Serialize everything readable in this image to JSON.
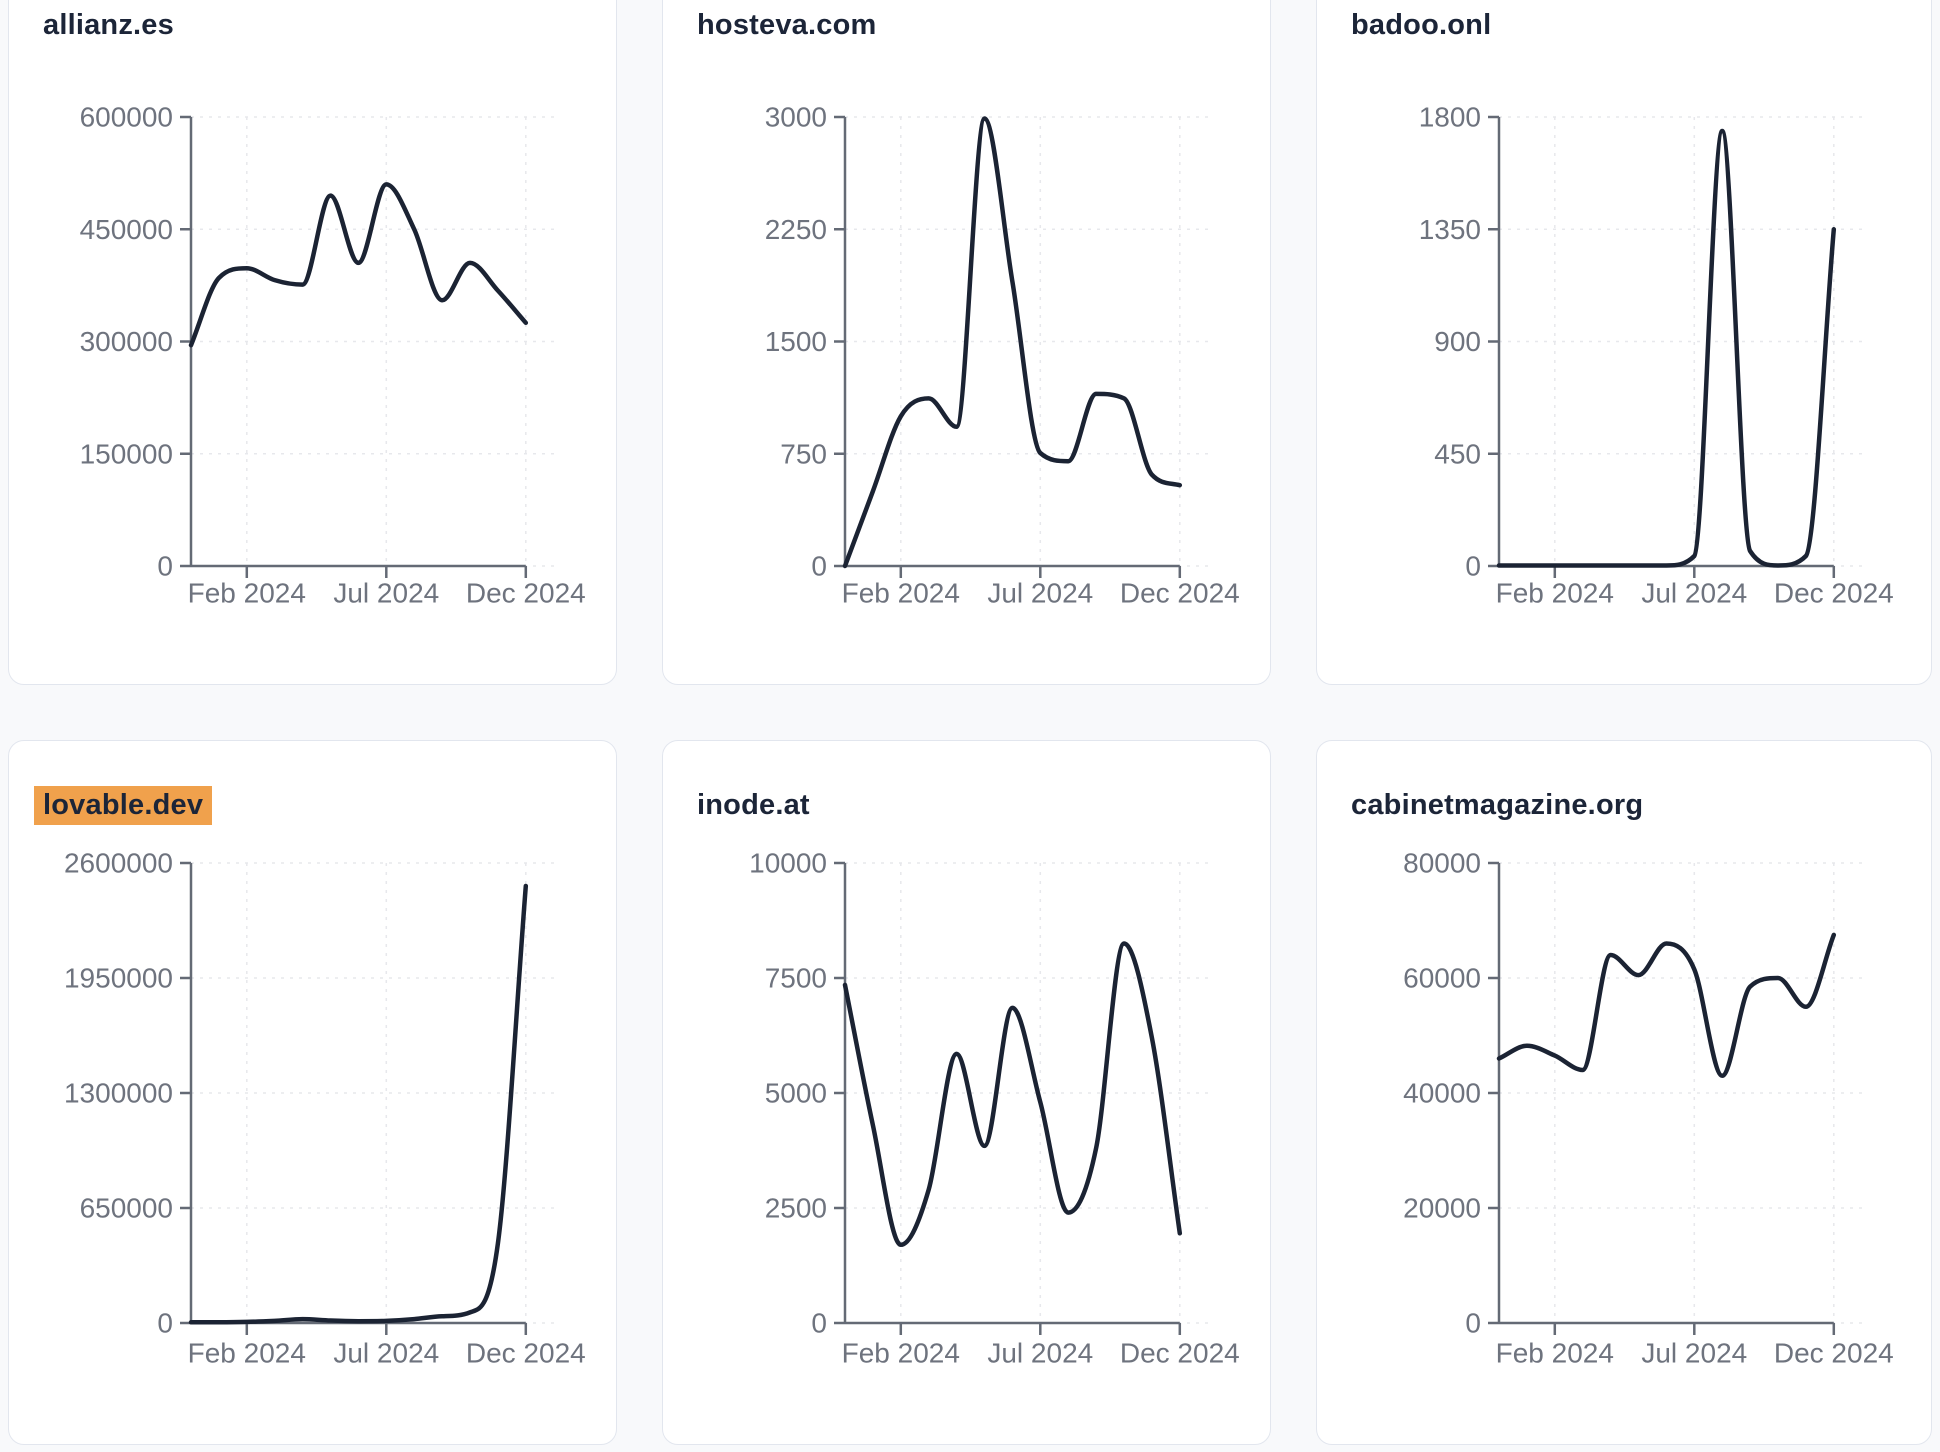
{
  "styles": {
    "page_background": "#f8f9fb",
    "card_background": "#ffffff",
    "card_border_color": "#e2e6ee",
    "line_color": "#1b2333",
    "axis_color": "#646a75",
    "tick_label_color": "#6e737e",
    "grid_color": "#e7e8ec",
    "title_color": "#1c2538",
    "highlight_color": "#f0a14c"
  },
  "x_axis": {
    "tick_labels": [
      "Feb 2024",
      "Jul 2024",
      "Dec 2024"
    ],
    "tick_month_indices": [
      2,
      7,
      12
    ],
    "months_span": 13
  },
  "chart_data": [
    {
      "type": "line",
      "title": "allianz.es",
      "highlighted": false,
      "ylim": [
        0,
        600000
      ],
      "y_ticks": [
        0,
        150000,
        300000,
        450000,
        600000
      ],
      "x_tick_labels": [
        "Feb 2024",
        "Jul 2024",
        "Dec 2024"
      ],
      "values": [
        295000,
        385000,
        398000,
        382000,
        376000,
        495000,
        405000,
        510000,
        450000,
        355000,
        405000,
        368000,
        325000
      ]
    },
    {
      "type": "line",
      "title": "hosteva.com",
      "highlighted": false,
      "ylim": [
        0,
        3000
      ],
      "y_ticks": [
        0,
        750,
        1500,
        2250,
        3000
      ],
      "x_tick_labels": [
        "Feb 2024",
        "Jul 2024",
        "Dec 2024"
      ],
      "values": [
        0,
        500,
        1000,
        1120,
        930,
        2990,
        1900,
        755,
        700,
        1150,
        1120,
        610,
        540
      ]
    },
    {
      "type": "line",
      "title": "badoo.onl",
      "highlighted": false,
      "ylim": [
        0,
        1800
      ],
      "y_ticks": [
        0,
        450,
        900,
        1350,
        1800
      ],
      "x_tick_labels": [
        "Feb 2024",
        "Jul 2024",
        "Dec 2024"
      ],
      "values": [
        2,
        2,
        2,
        2,
        2,
        2,
        2,
        40,
        1744,
        60,
        2,
        40,
        1350
      ]
    },
    {
      "type": "line",
      "title": "lovable.dev",
      "highlighted": true,
      "ylim": [
        0,
        2600000
      ],
      "y_ticks": [
        0,
        650000,
        1300000,
        1950000,
        2600000
      ],
      "x_tick_labels": [
        "Feb 2024",
        "Jul 2024",
        "Dec 2024"
      ],
      "values": [
        4000,
        4000,
        6000,
        12000,
        22000,
        14000,
        10000,
        12000,
        22000,
        38000,
        60000,
        450000,
        2470000
      ]
    },
    {
      "type": "line",
      "title": "inode.at",
      "highlighted": false,
      "ylim": [
        0,
        10000
      ],
      "y_ticks": [
        0,
        2500,
        5000,
        7500,
        10000
      ],
      "x_tick_labels": [
        "Feb 2024",
        "Jul 2024",
        "Dec 2024"
      ],
      "values": [
        7350,
        4300,
        1700,
        2900,
        5850,
        3850,
        6850,
        4800,
        2400,
        3800,
        8250,
        6200,
        1950
      ]
    },
    {
      "type": "line",
      "title": "cabinetmagazine.org",
      "highlighted": false,
      "ylim": [
        0,
        80000
      ],
      "y_ticks": [
        0,
        20000,
        40000,
        60000,
        80000
      ],
      "x_tick_labels": [
        "Feb 2024",
        "Jul 2024",
        "Dec 2024"
      ],
      "values": [
        46000,
        48200,
        46500,
        44000,
        64000,
        60500,
        66000,
        61500,
        43000,
        58500,
        60000,
        55000,
        67500
      ]
    }
  ]
}
